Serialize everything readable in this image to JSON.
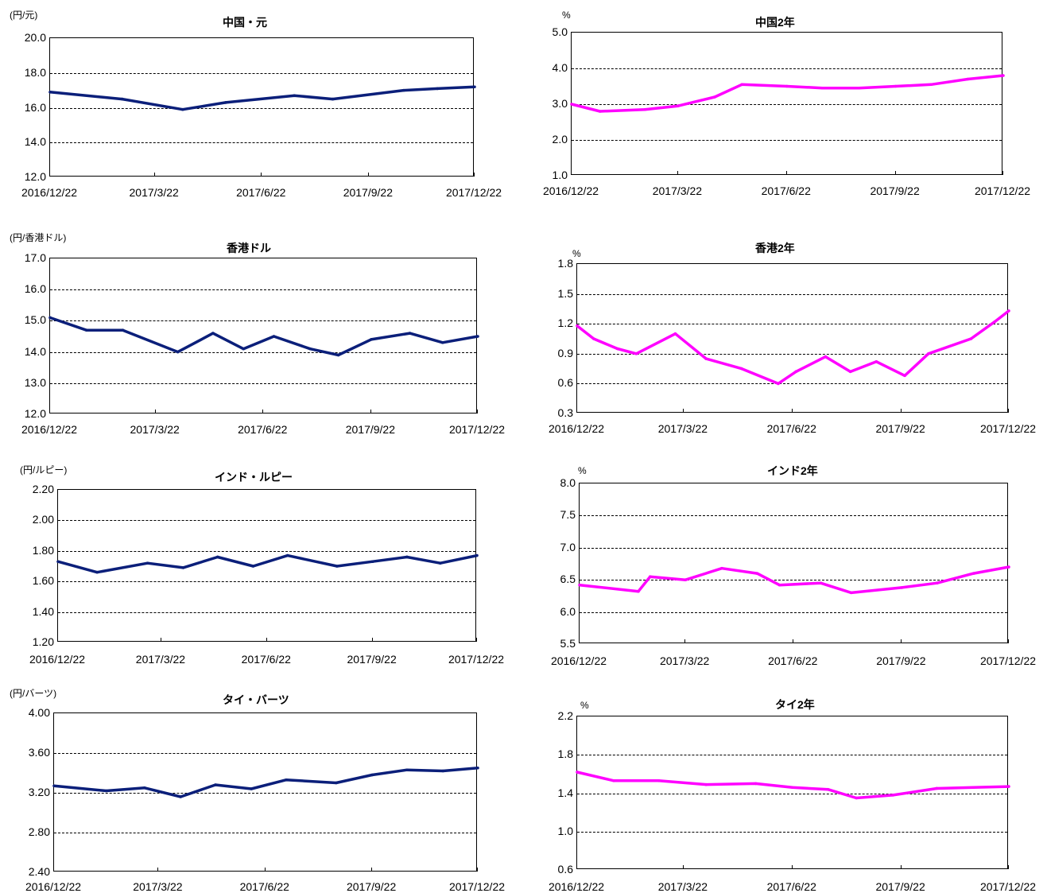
{
  "colors": {
    "fx": "#0b1f7a",
    "rate": "#ff00ff",
    "grid": "#000000"
  },
  "chart_data": [
    {
      "id": "cny",
      "type": "line",
      "title": "中国・元",
      "unit": "(円/元)",
      "ylim": [
        12.0,
        20.0
      ],
      "yticks": [
        "12.0",
        "14.0",
        "16.0",
        "18.0",
        "20.0"
      ],
      "xticks": [
        "2016/12/22",
        "2017/3/22",
        "2017/6/22",
        "2017/9/22",
        "2017/12/22"
      ],
      "x": [
        "2016/12/22",
        "2017/2/22",
        "2017/4/15",
        "2017/5/22",
        "2017/7/20",
        "2017/8/22",
        "2017/10/22",
        "2017/11/20",
        "2017/12/22"
      ],
      "series": [
        {
          "color": "fx",
          "values": [
            16.9,
            16.5,
            15.9,
            16.3,
            16.7,
            16.5,
            17.0,
            17.1,
            17.2
          ]
        }
      ]
    },
    {
      "id": "cn2y",
      "type": "line",
      "title": "中国2年",
      "unit": "%",
      "ylim": [
        1.0,
        5.0
      ],
      "yticks": [
        "1.0",
        "2.0",
        "3.0",
        "4.0",
        "5.0"
      ],
      "xticks": [
        "2016/12/22",
        "2017/3/22",
        "2017/6/22",
        "2017/9/22",
        "2017/12/22"
      ],
      "x": [
        "2016/12/22",
        "2017/1/15",
        "2017/2/22",
        "2017/3/22",
        "2017/4/22",
        "2017/5/15",
        "2017/6/22",
        "2017/7/22",
        "2017/8/22",
        "2017/9/22",
        "2017/10/22",
        "2017/11/22",
        "2017/12/22"
      ],
      "series": [
        {
          "color": "rate",
          "values": [
            3.0,
            2.8,
            2.85,
            2.95,
            3.2,
            3.55,
            3.5,
            3.45,
            3.45,
            3.5,
            3.55,
            3.7,
            3.8
          ]
        }
      ]
    },
    {
      "id": "hkd",
      "type": "line",
      "title": "香港ドル",
      "unit": "(円/香港ドル)",
      "ylim": [
        12.0,
        17.0
      ],
      "yticks": [
        "12.0",
        "13.0",
        "14.0",
        "15.0",
        "16.0",
        "17.0"
      ],
      "xticks": [
        "2016/12/22",
        "2017/3/22",
        "2017/6/22",
        "2017/9/22",
        "2017/12/22"
      ],
      "x": [
        "2016/12/22",
        "2017/1/22",
        "2017/2/22",
        "2017/4/10",
        "2017/5/10",
        "2017/6/5",
        "2017/7/1",
        "2017/8/1",
        "2017/8/25",
        "2017/9/22",
        "2017/10/25",
        "2017/11/22",
        "2017/12/22"
      ],
      "series": [
        {
          "color": "fx",
          "values": [
            15.1,
            14.7,
            14.7,
            14.0,
            14.6,
            14.1,
            14.5,
            14.1,
            13.9,
            14.4,
            14.6,
            14.3,
            14.5
          ]
        }
      ]
    },
    {
      "id": "hk2y",
      "type": "line",
      "title": "香港2年",
      "unit": "%",
      "ylim": [
        0.3,
        1.8
      ],
      "yticks": [
        "0.3",
        "0.6",
        "0.9",
        "1.2",
        "1.5",
        "1.8"
      ],
      "xticks": [
        "2016/12/22",
        "2017/3/22",
        "2017/6/22",
        "2017/9/22",
        "2017/12/22"
      ],
      "x": [
        "2016/12/22",
        "2017/1/5",
        "2017/1/25",
        "2017/2/10",
        "2017/3/15",
        "2017/4/10",
        "2017/5/10",
        "2017/6/10",
        "2017/6/25",
        "2017/7/20",
        "2017/8/10",
        "2017/9/1",
        "2017/9/25",
        "2017/10/15",
        "2017/11/20",
        "2017/12/10",
        "2017/12/22"
      ],
      "series": [
        {
          "color": "rate",
          "values": [
            1.18,
            1.05,
            0.95,
            0.9,
            1.1,
            0.85,
            0.75,
            0.6,
            0.72,
            0.87,
            0.72,
            0.82,
            0.68,
            0.9,
            1.05,
            1.22,
            1.33
          ]
        }
      ]
    },
    {
      "id": "inr",
      "type": "line",
      "title": "インド・ルピー",
      "unit": "(円/ルピー)",
      "ylim": [
        1.2,
        2.2
      ],
      "yticks": [
        "1.20",
        "1.40",
        "1.60",
        "1.80",
        "2.00",
        "2.20"
      ],
      "xticks": [
        "2016/12/22",
        "2017/3/22",
        "2017/6/22",
        "2017/9/22",
        "2017/12/22"
      ],
      "x": [
        "2016/12/22",
        "2017/1/25",
        "2017/3/10",
        "2017/4/10",
        "2017/5/10",
        "2017/6/10",
        "2017/7/10",
        "2017/8/22",
        "2017/9/22",
        "2017/10/22",
        "2017/11/20",
        "2017/12/22"
      ],
      "series": [
        {
          "color": "fx",
          "values": [
            1.73,
            1.66,
            1.72,
            1.69,
            1.76,
            1.7,
            1.77,
            1.7,
            1.73,
            1.76,
            1.72,
            1.77
          ]
        }
      ]
    },
    {
      "id": "in2y",
      "type": "line",
      "title": "インド2年",
      "unit": "%",
      "ylim": [
        5.5,
        8.0
      ],
      "yticks": [
        "5.5",
        "6.0",
        "6.5",
        "7.0",
        "7.5",
        "8.0"
      ],
      "xticks": [
        "2016/12/22",
        "2017/3/22",
        "2017/6/22",
        "2017/9/22",
        "2017/12/22"
      ],
      "x": [
        "2016/12/22",
        "2017/2/10",
        "2017/2/20",
        "2017/3/22",
        "2017/4/22",
        "2017/5/22",
        "2017/6/10",
        "2017/7/15",
        "2017/8/10",
        "2017/9/22",
        "2017/10/22",
        "2017/11/22",
        "2017/12/22"
      ],
      "series": [
        {
          "color": "rate",
          "values": [
            6.42,
            6.32,
            6.55,
            6.5,
            6.68,
            6.6,
            6.42,
            6.45,
            6.3,
            6.38,
            6.45,
            6.6,
            6.7
          ]
        }
      ]
    },
    {
      "id": "thb",
      "type": "line",
      "title": "タイ・バーツ",
      "unit": "(円/バーツ)",
      "ylim": [
        2.4,
        4.0
      ],
      "yticks": [
        "2.40",
        "2.80",
        "3.20",
        "3.60",
        "4.00"
      ],
      "xticks": [
        "2016/12/22",
        "2017/3/22",
        "2017/6/22",
        "2017/9/22",
        "2017/12/22"
      ],
      "x": [
        "2016/12/22",
        "2017/2/5",
        "2017/3/10",
        "2017/4/10",
        "2017/5/10",
        "2017/6/10",
        "2017/7/10",
        "2017/8/22",
        "2017/9/22",
        "2017/10/22",
        "2017/11/22",
        "2017/12/22"
      ],
      "series": [
        {
          "color": "fx",
          "values": [
            3.27,
            3.22,
            3.25,
            3.16,
            3.28,
            3.24,
            3.33,
            3.3,
            3.38,
            3.43,
            3.42,
            3.45
          ]
        }
      ]
    },
    {
      "id": "th2y",
      "type": "line",
      "title": "タイ2年",
      "unit": "%",
      "ylim": [
        0.6,
        2.2
      ],
      "yticks": [
        "0.6",
        "1.0",
        "1.4",
        "1.8",
        "2.2"
      ],
      "xticks": [
        "2016/12/22",
        "2017/3/22",
        "2017/6/22",
        "2017/9/22",
        "2017/12/22"
      ],
      "x": [
        "2016/12/22",
        "2017/1/22",
        "2017/3/1",
        "2017/4/10",
        "2017/5/22",
        "2017/6/22",
        "2017/7/22",
        "2017/8/15",
        "2017/9/15",
        "2017/10/22",
        "2017/11/22",
        "2017/12/22"
      ],
      "series": [
        {
          "color": "rate",
          "values": [
            1.62,
            1.53,
            1.53,
            1.49,
            1.5,
            1.46,
            1.44,
            1.35,
            1.38,
            1.45,
            1.46,
            1.47
          ]
        }
      ]
    }
  ]
}
